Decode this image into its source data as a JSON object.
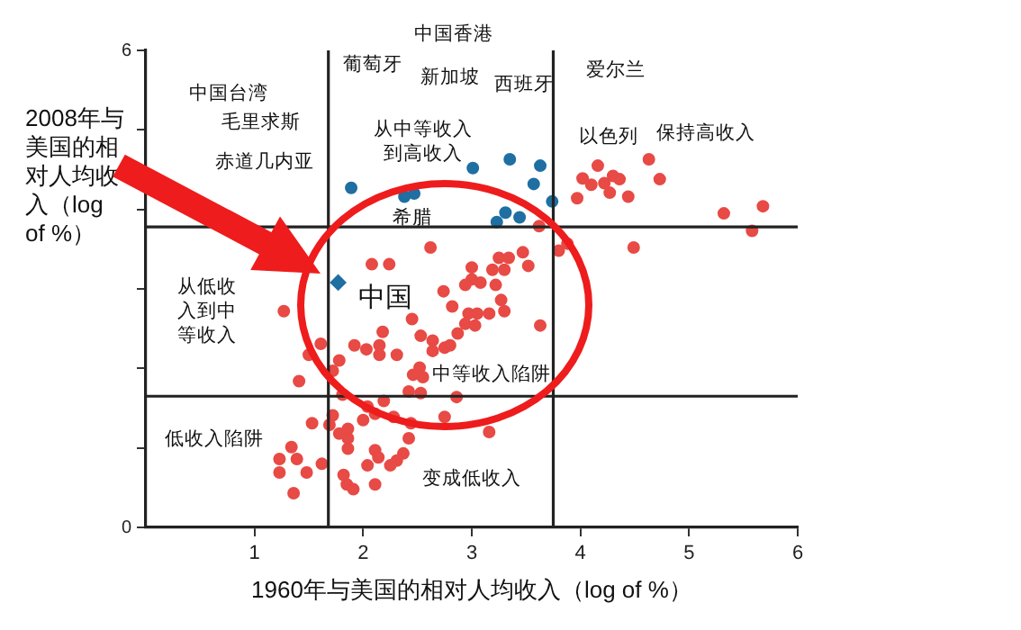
{
  "chart_data": {
    "type": "scatter",
    "xlabel": "1960年与美国的相对人均收入（log of %）",
    "ylabel": "2008年与美国的相对人均收入（log of %）",
    "xlim": [
      0,
      6
    ],
    "xticks": [
      1,
      2,
      3,
      4,
      5,
      6
    ],
    "ylim": [
      0,
      6
    ],
    "yticks": [
      0,
      {
        "value": 1,
        "label": null
      },
      {
        "value": 2,
        "label": null
      },
      {
        "value": 3,
        "label": null
      },
      {
        "value": 4,
        "label": null
      },
      {
        "value": 5,
        "label": null
      },
      6
    ],
    "grid": false,
    "legend": false,
    "marker": "circle",
    "series": [
      {
        "color": "#e84a45",
        "x": [
          4.63,
          4.16,
          4.02,
          4.1,
          4.22,
          4.3,
          4.36,
          4.27,
          3.97,
          4.44,
          4.73,
          5.32,
          5.68,
          5.58,
          4.49,
          3.8,
          3.62,
          2.62,
          3.88,
          2.08,
          2.24,
          3.47,
          3.34,
          3.25,
          3.52,
          3.0,
          3.19,
          3.3,
          3.0,
          3.08,
          3.22,
          2.94,
          2.74,
          3.27,
          2.82,
          2.97,
          3.05,
          3.16,
          3.3,
          1.27,
          2.94,
          3.03,
          3.63,
          2.45,
          2.87,
          2.53,
          2.64,
          2.18,
          2.15,
          1.92,
          2.03,
          2.15,
          2.64,
          2.75,
          2.8,
          1.61,
          1.78,
          2.31,
          1.5,
          1.72,
          1.41,
          2.52,
          2.46,
          2.55,
          2.42,
          2.53,
          2.86,
          1.81,
          2.04,
          2.19,
          2.11,
          2.0,
          2.28,
          2.44,
          2.75,
          3.16,
          1.72,
          1.53,
          1.69,
          1.78,
          1.86,
          1.86,
          1.86,
          2.42,
          2.37,
          2.11,
          2.14,
          2.04,
          2.25,
          2.31,
          1.62,
          1.34,
          1.23,
          1.39,
          1.23,
          1.48,
          1.82,
          2.11,
          1.85,
          1.91,
          1.36
        ],
        "values": [
          4.63,
          4.55,
          4.39,
          4.31,
          4.33,
          4.42,
          4.38,
          4.21,
          4.14,
          4.16,
          4.38,
          3.95,
          4.04,
          3.73,
          3.52,
          3.48,
          3.79,
          3.52,
          3.57,
          3.31,
          3.31,
          3.46,
          3.39,
          3.39,
          3.29,
          3.27,
          3.24,
          3.24,
          3.12,
          3.08,
          3.05,
          3.05,
          2.97,
          2.86,
          2.78,
          2.69,
          2.69,
          2.69,
          2.72,
          2.72,
          2.56,
          2.54,
          2.54,
          2.62,
          2.44,
          2.41,
          2.35,
          2.46,
          2.29,
          2.29,
          2.24,
          2.17,
          2.22,
          2.26,
          2.29,
          2.31,
          2.1,
          2.17,
          2.17,
          1.97,
          1.84,
          2.01,
          1.92,
          1.89,
          1.71,
          1.69,
          1.64,
          1.67,
          1.52,
          1.59,
          1.43,
          1.35,
          1.39,
          1.31,
          1.39,
          1.2,
          1.41,
          1.31,
          1.29,
          1.18,
          1.24,
          1.12,
          0.99,
          1.12,
          0.93,
          0.97,
          0.88,
          0.78,
          0.78,
          0.84,
          0.8,
          1.01,
          0.86,
          0.86,
          0.69,
          0.69,
          0.66,
          0.54,
          0.54,
          0.48,
          0.43
        ]
      },
      {
        "color": "#1f6fa3",
        "x": [
          1.89,
          2.38,
          2.47,
          3.01,
          3.35,
          3.63,
          3.57,
          3.74,
          3.31,
          3.44,
          3.23
        ],
        "values": [
          4.27,
          4.16,
          4.2,
          4.52,
          4.63,
          4.55,
          4.32,
          4.1,
          3.96,
          3.9,
          3.84
        ]
      },
      {
        "color": "#1f6fa3",
        "marker": "diamond",
        "x": [
          1.77
        ],
        "values": [
          3.08
        ]
      }
    ],
    "ref_lines": [
      {
        "axis": "x",
        "value": 1.68,
        "color": "#222222"
      },
      {
        "axis": "x",
        "value": 3.75,
        "color": "#222222"
      },
      {
        "axis": "y",
        "value": 3.78,
        "color": "#222222"
      },
      {
        "axis": "y",
        "value": 1.65,
        "color": "#222222"
      }
    ],
    "annotations": [
      "中国香港",
      "葡萄牙",
      "新加坡",
      "西班牙",
      "爱尔兰",
      "中国台湾",
      "毛里求斯",
      "从中等收入到高收入",
      "赤道几内亚",
      "以色列",
      "保持高收入",
      "希腊",
      "中国",
      "从低收入到中等收入",
      "中等收入陷阱",
      "低收入陷阱",
      "变成低收入"
    ]
  }
}
